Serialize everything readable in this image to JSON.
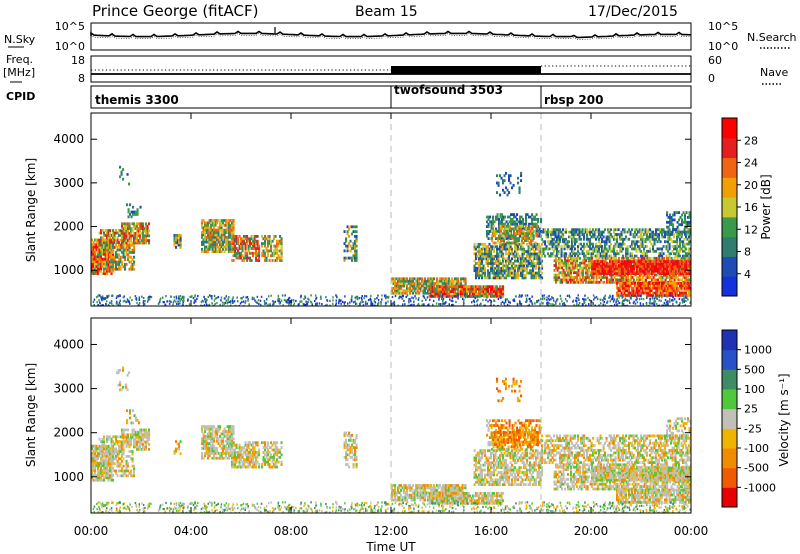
{
  "header": {
    "station": "Prince George (fitACF)",
    "beam": "Beam 15",
    "date": "17/Dec/2015"
  },
  "left_labels": {
    "nsky": "N.Sky",
    "freq": "Freq.",
    "freq_unit": "[MHz]",
    "cpid": "CPID"
  },
  "right_labels": {
    "nsearch": "N.Search",
    "nave": "Nave"
  },
  "noise_panel": {
    "left_ticks": [
      "10^5",
      "10^0"
    ],
    "right_ticks": [
      "10^5",
      "10^0"
    ]
  },
  "freq_panel": {
    "left_ticks": [
      "18",
      "8"
    ],
    "right_ticks": [
      "60",
      "0"
    ]
  },
  "cpid_panel": {
    "segments": [
      {
        "label": "themis 3300",
        "start": 0,
        "end": 12
      },
      {
        "label": "twofsound 3503",
        "start": 12,
        "end": 18
      },
      {
        "label": "rbsp 200",
        "start": 18,
        "end": 24
      }
    ]
  },
  "colors": {
    "power_scale": [
      "#1432dc",
      "#1e4bb4",
      "#2e7d6e",
      "#3a9a4a",
      "#c8c832",
      "#f0a000",
      "#f06414",
      "#e61e1e",
      "#ff0000"
    ],
    "velocity_scale": [
      "#1e32b4",
      "#2850c8",
      "#3c8c64",
      "#50c83c",
      "#c0c0b8",
      "#f0b400",
      "#f08c00",
      "#f05a00",
      "#e60000"
    ]
  },
  "chart_data": [
    {
      "type": "heatmap",
      "name": "power",
      "xlabel": "Time UT",
      "ylabel": "Slant Range [km]",
      "xlim": [
        0,
        24
      ],
      "ylim": [
        180,
        4600
      ],
      "xticks": [
        "00:00",
        "04:00",
        "08:00",
        "12:00",
        "16:00",
        "20:00",
        "00:00"
      ],
      "yticks": [
        "1000",
        "2000",
        "3000",
        "4000"
      ],
      "colorbar": {
        "label": "Power [dB]",
        "ticks": [
          "28",
          "24",
          "20",
          "16",
          "12",
          "8",
          "4"
        ],
        "range": [
          0,
          32
        ]
      }
    },
    {
      "type": "heatmap",
      "name": "velocity",
      "xlabel": "Time UT",
      "ylabel": "Slant Range [km]",
      "xlim": [
        0,
        24
      ],
      "ylim": [
        180,
        4600
      ],
      "xticks": [
        "00:00",
        "04:00",
        "08:00",
        "12:00",
        "16:00",
        "20:00",
        "00:00"
      ],
      "yticks": [
        "1000",
        "2000",
        "3000",
        "4000"
      ],
      "colorbar": {
        "label": "Velocity [m s⁻¹]",
        "ticks": [
          "1000",
          "500",
          "100",
          "25",
          "-25",
          "-100",
          "-500",
          "-1000"
        ]
      }
    }
  ]
}
